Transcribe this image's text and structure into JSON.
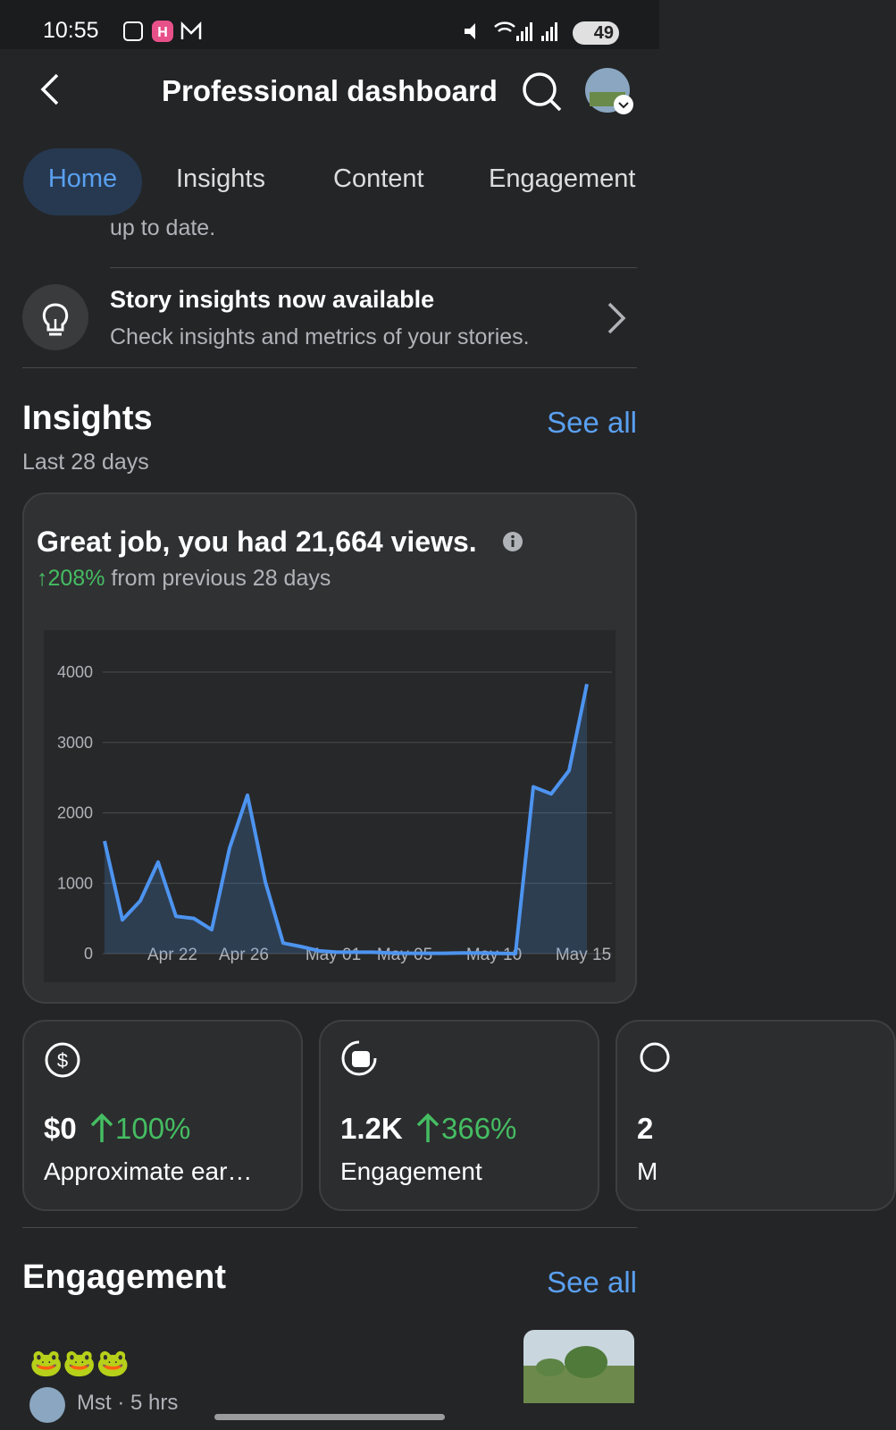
{
  "status_bar": {
    "time": "10:55",
    "battery": "49"
  },
  "header": {
    "title": "Professional dashboard"
  },
  "tabs": [
    "Home",
    "Insights",
    "Content",
    "Engagement"
  ],
  "partial_text": "up to date.",
  "story": {
    "title": "Story insights now available",
    "subtitle": "Check insights and metrics of your stories."
  },
  "insights": {
    "title": "Insights",
    "see_all": "See all",
    "period": "Last 28 days",
    "headline": "Great job, you had 21,664 views.",
    "change": "↑208%",
    "change_text": "from previous 28 days"
  },
  "chart_data": {
    "type": "area",
    "categories": [
      null,
      null,
      null,
      null,
      "Apr 22",
      null,
      null,
      null,
      "Apr 26",
      null,
      null,
      null,
      null,
      "May 01",
      null,
      null,
      null,
      "May 05",
      null,
      null,
      null,
      null,
      "May 10",
      null,
      null,
      null,
      null,
      "May 15"
    ],
    "values": [
      1600,
      480,
      750,
      1300,
      530,
      500,
      340,
      1500,
      2250,
      1020,
      150,
      100,
      40,
      20,
      20,
      20,
      10,
      5,
      5,
      5,
      10,
      10,
      5,
      0,
      2370,
      2270,
      2600,
      3830
    ],
    "color": "#4d94f0",
    "ylim": [
      0,
      4000
    ],
    "yticks": [
      0,
      1000,
      2000,
      3000,
      4000
    ],
    "grid": true
  },
  "cards": [
    {
      "value": "$0",
      "change": "100%",
      "label": "Approximate ear…"
    },
    {
      "value": "1.2K",
      "change": "366%",
      "label": "Engagement"
    },
    {
      "value": "2",
      "label": "M"
    }
  ],
  "engagement": {
    "title": "Engagement",
    "see_all": "See all",
    "post_text": "🐸🐸🐸",
    "post_meta": "Mst · 5 hrs"
  }
}
